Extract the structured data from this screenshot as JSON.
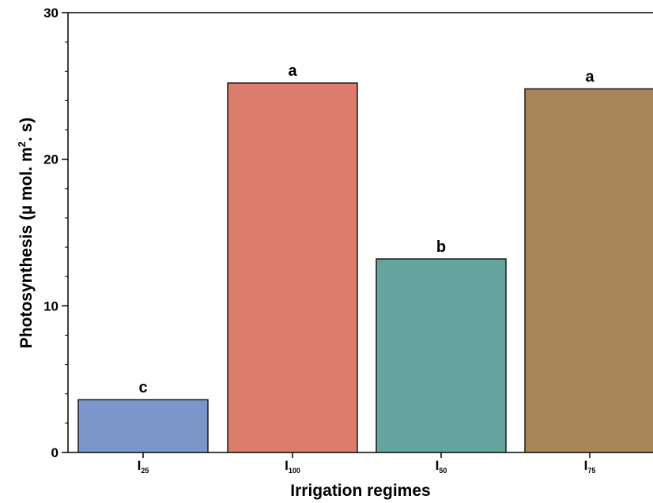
{
  "chart_data": {
    "type": "bar",
    "title": "",
    "xlabel": "Irrigation regimes",
    "ylabel_parts": {
      "prefix": "Photosynthesis (µ mol. m",
      "sup": "2",
      "suffix": ". s)"
    },
    "ylim": [
      0,
      30
    ],
    "yticks": [
      0,
      10,
      20,
      30
    ],
    "categories": [
      {
        "base": "I",
        "sub": "25"
      },
      {
        "base": "I",
        "sub": "100"
      },
      {
        "base": "I",
        "sub": "50"
      },
      {
        "base": "I",
        "sub": "75"
      }
    ],
    "values": [
      3.6,
      25.2,
      13.2,
      24.8
    ],
    "letters": [
      "c",
      "a",
      "b",
      "a"
    ],
    "colors": [
      "#7b96c8",
      "#dc7c6c",
      "#64a59f",
      "#a8865a"
    ],
    "grid": false,
    "legend": "none"
  }
}
